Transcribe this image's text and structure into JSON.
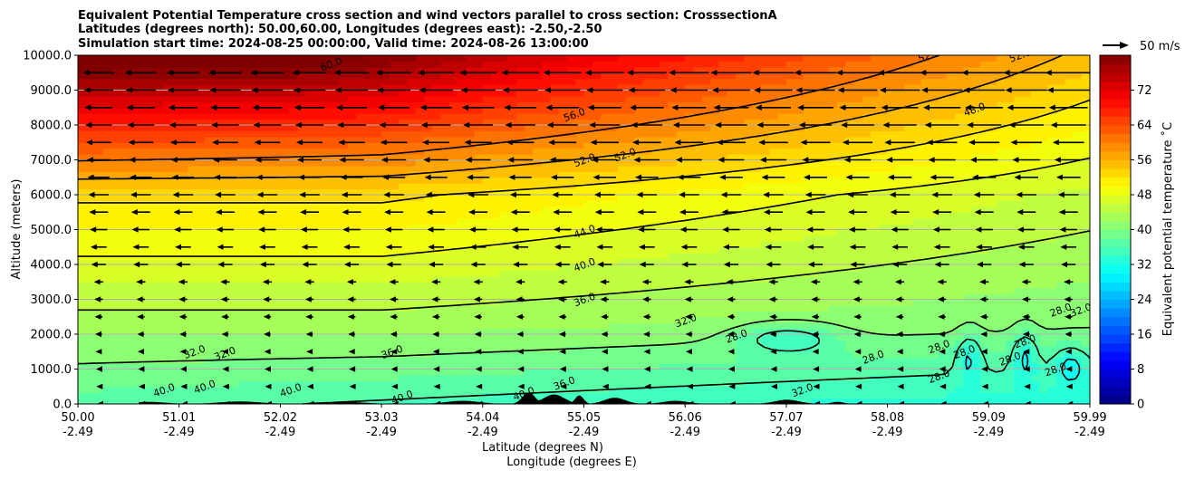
{
  "chart_data": {
    "type": "contourf",
    "title_lines": [
      "Equivalent Potential Temperature cross section and wind vectors parallel to cross section: CrosssectionA",
      "Latitudes (degrees north): 50.00,60.00, Longitudes (degrees east): -2.50,-2.50",
      "Simulation start time: 2024-08-25 00:00:00, Valid time: 2024-08-26 13:00:00"
    ],
    "ylabel": "Altitude (meters)",
    "xlabel_lat": "Latitude (degrees N)",
    "xlabel_lon": "Longitude (degrees E)",
    "ylim": [
      0,
      10000
    ],
    "x_ticks": [
      {
        "lat": "50.00",
        "lon": "-2.49"
      },
      {
        "lat": "51.01",
        "lon": "-2.49"
      },
      {
        "lat": "52.02",
        "lon": "-2.49"
      },
      {
        "lat": "53.03",
        "lon": "-2.49"
      },
      {
        "lat": "54.04",
        "lon": "-2.49"
      },
      {
        "lat": "55.05",
        "lon": "-2.49"
      },
      {
        "lat": "56.06",
        "lon": "-2.49"
      },
      {
        "lat": "57.07",
        "lon": "-2.49"
      },
      {
        "lat": "58.08",
        "lon": "-2.49"
      },
      {
        "lat": "59.09",
        "lon": "-2.49"
      },
      {
        "lat": "59.99",
        "lon": "-2.49"
      }
    ],
    "y_ticks": [
      "0.0",
      "1000.0",
      "2000.0",
      "3000.0",
      "4000.0",
      "5000.0",
      "6000.0",
      "7000.0",
      "8000.0",
      "9000.0",
      "10000.0"
    ],
    "y_values": [
      0,
      1000,
      2000,
      3000,
      4000,
      5000,
      6000,
      7000,
      8000,
      9000,
      10000
    ],
    "grid": true,
    "colorbar": {
      "label": "Equivalent potential temperature ˚C",
      "range": [
        0,
        80
      ],
      "ticks": [
        0,
        8,
        16,
        24,
        32,
        40,
        48,
        56,
        64,
        72
      ],
      "tick_labels": [
        "0",
        "8",
        "16",
        "24",
        "32",
        "40",
        "48",
        "56",
        "64",
        "72"
      ]
    },
    "quiver_key": "50 m/s",
    "contour_levels": [
      28,
      32,
      36,
      40,
      44,
      48,
      52,
      56,
      60
    ],
    "contour_labels": [
      {
        "text": "60.0",
        "x": 52.5,
        "y": 9750
      },
      {
        "text": "56.0",
        "x": 54.9,
        "y": 8300
      },
      {
        "text": "52.0",
        "x": 55.0,
        "y": 7000
      },
      {
        "text": "52.0",
        "x": 55.4,
        "y": 7150
      },
      {
        "text": "48.0",
        "x": 58.85,
        "y": 8450
      },
      {
        "text": "52.0",
        "x": 58.4,
        "y": 10000
      },
      {
        "text": "52.0",
        "x": 59.3,
        "y": 10000
      },
      {
        "text": "44.0",
        "x": 55.0,
        "y": 4950
      },
      {
        "text": "40.0",
        "x": 55.0,
        "y": 4000
      },
      {
        "text": "36.0",
        "x": 55.0,
        "y": 3000
      },
      {
        "text": "32.0",
        "x": 56.0,
        "y": 2400
      },
      {
        "text": "32.0",
        "x": 51.15,
        "y": 1500
      },
      {
        "text": "32.0",
        "x": 51.45,
        "y": 1450
      },
      {
        "text": "36.0",
        "x": 53.1,
        "y": 1500
      },
      {
        "text": "28.0",
        "x": 56.5,
        "y": 1950
      },
      {
        "text": "28.0",
        "x": 57.85,
        "y": 1350
      },
      {
        "text": "28.0",
        "x": 58.5,
        "y": 1650
      },
      {
        "text": "28.0",
        "x": 58.75,
        "y": 1500
      },
      {
        "text": "28.0",
        "x": 59.35,
        "y": 1800
      },
      {
        "text": "28.0",
        "x": 59.2,
        "y": 1300
      },
      {
        "text": "28.0",
        "x": 59.65,
        "y": 1000
      },
      {
        "text": "28.0",
        "x": 59.7,
        "y": 2700
      },
      {
        "text": "40.0",
        "x": 50.85,
        "y": 400
      },
      {
        "text": "40.0",
        "x": 51.25,
        "y": 500
      },
      {
        "text": "40.0",
        "x": 52.1,
        "y": 400
      },
      {
        "text": "40.0",
        "x": 53.2,
        "y": 200
      },
      {
        "text": "36.0",
        "x": 54.8,
        "y": 600
      },
      {
        "text": "40.0",
        "x": 54.4,
        "y": 300
      },
      {
        "text": "32.0",
        "x": 57.15,
        "y": 400
      },
      {
        "text": "28.0",
        "x": 58.5,
        "y": 800
      },
      {
        "text": "32.0",
        "x": 59.9,
        "y": 2700
      }
    ]
  }
}
